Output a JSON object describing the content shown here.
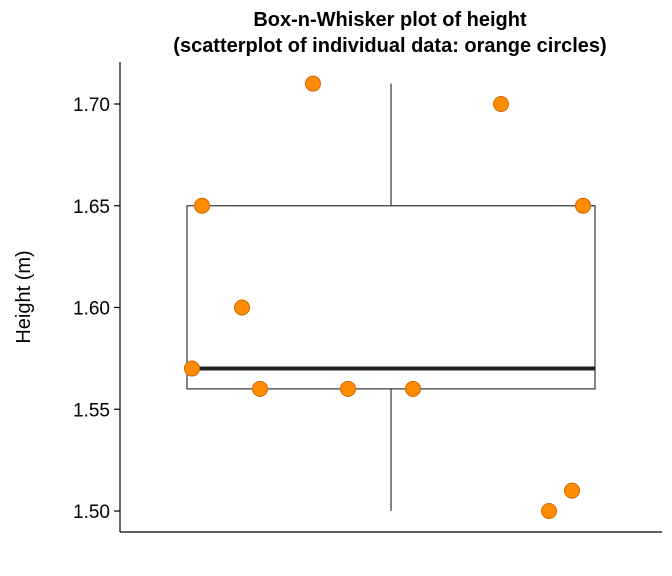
{
  "chart_data": {
    "type": "boxplot",
    "title_line1": "Box-n-Whisker plot of height",
    "title_line2": "(scatterplot of individual data: orange circles)",
    "ylabel": "Height (m)",
    "xlabel": "",
    "ylim": [
      1.49,
      1.72
    ],
    "yticks": [
      1.5,
      1.55,
      1.6,
      1.65,
      1.7
    ],
    "ytick_labels": [
      "1.50",
      "1.55",
      "1.60",
      "1.65",
      "1.70"
    ],
    "box": {
      "min": 1.5,
      "q1": 1.56,
      "median": 1.57,
      "q3": 1.65,
      "max": 1.71
    },
    "points": [
      1.57,
      1.65,
      1.6,
      1.56,
      1.71,
      1.56,
      1.56,
      1.7,
      1.5,
      1.51,
      1.65
    ],
    "point_color": "#FF8C00",
    "point_edge_color": "#CC6600",
    "grid": false
  }
}
